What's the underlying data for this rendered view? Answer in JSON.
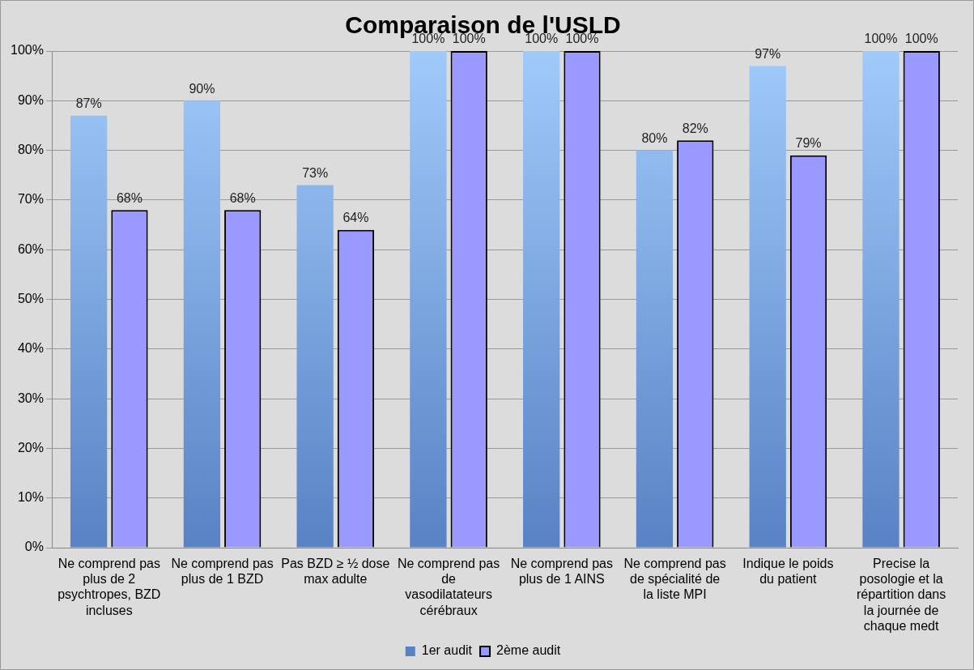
{
  "chart_data": {
    "type": "bar",
    "title": "Comparaison de l'USLD",
    "categories": [
      "Ne comprend pas plus de 2 psychtropes, BZD incluses",
      "Ne comprend pas plus de 1 BZD",
      "Pas BZD ≥ ½ dose max adulte",
      "Ne comprend pas de vasodilatateurs cérébraux",
      "Ne comprend pas plus de 1 AINS",
      "Ne comprend pas de spécialité de la liste MPI",
      "Indique le poids du patient",
      "Precise la posologie et la répartition dans la journée de chaque medt"
    ],
    "series": [
      {
        "name": "1er audit",
        "color": "#6ea2e6",
        "values": [
          87,
          90,
          73,
          100,
          100,
          80,
          97,
          100
        ],
        "value_labels": [
          "87%",
          "90%",
          "73%",
          "100%",
          "100%",
          "80%",
          "97%",
          "100%"
        ]
      },
      {
        "name": "2ème audit",
        "color": "#9999ff",
        "values": [
          68,
          68,
          64,
          100,
          100,
          82,
          79,
          100
        ],
        "value_labels": [
          "68%",
          "68%",
          "64%",
          "100%",
          "100%",
          "82%",
          "79%",
          "100%"
        ]
      }
    ],
    "ylim": [
      0,
      100
    ],
    "yticks": [
      {
        "value": 0,
        "label": "0%"
      },
      {
        "value": 10,
        "label": "10%"
      },
      {
        "value": 20,
        "label": "20%"
      },
      {
        "value": 30,
        "label": "30%"
      },
      {
        "value": 40,
        "label": "40%"
      },
      {
        "value": 50,
        "label": "50%"
      },
      {
        "value": 60,
        "label": "60%"
      },
      {
        "value": 70,
        "label": "70%"
      },
      {
        "value": 80,
        "label": "80%"
      },
      {
        "value": 90,
        "label": "90%"
      },
      {
        "value": 100,
        "label": "100%"
      }
    ],
    "grid": "y",
    "legend": "bottom"
  }
}
